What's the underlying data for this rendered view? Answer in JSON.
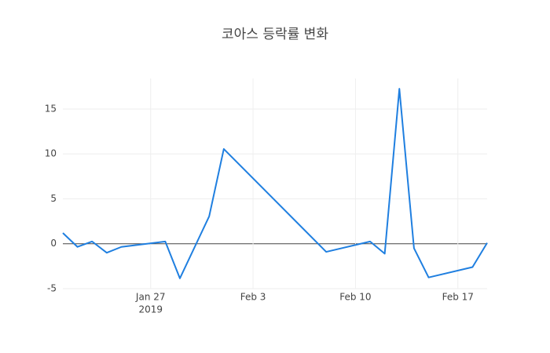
{
  "chart_data": {
    "type": "line",
    "title": "코아스 등락률 변화",
    "x": [
      "2019-01-21",
      "2019-01-22",
      "2019-01-23",
      "2019-01-24",
      "2019-01-25",
      "2019-01-28",
      "2019-01-29",
      "2019-01-31",
      "2019-02-01",
      "2019-02-08",
      "2019-02-11",
      "2019-02-12",
      "2019-02-13",
      "2019-02-14",
      "2019-02-15",
      "2019-02-18",
      "2019-02-19"
    ],
    "series": [
      {
        "color": "#1f7fe0",
        "values": [
          1.2,
          -0.35,
          0.25,
          -1.0,
          -0.35,
          0.25,
          -3.85,
          3.05,
          10.55,
          -0.9,
          0.25,
          -1.1,
          17.25,
          -0.5,
          -3.75,
          -2.6,
          0.1
        ]
      }
    ],
    "xlim": [
      "2019-01-21",
      "2019-02-19"
    ],
    "xticks": [
      {
        "value": "2019-01-27",
        "label": "Jan 27"
      },
      {
        "value": "2019-02-03",
        "label": "Feb 3"
      },
      {
        "value": "2019-02-10",
        "label": "Feb 10"
      },
      {
        "value": "2019-02-17",
        "label": "Feb 17"
      }
    ],
    "x_year_label": "2019",
    "ylim": [
      -5,
      18.4
    ],
    "yticks": [
      -5,
      0,
      5,
      10,
      15
    ],
    "grid": true
  }
}
